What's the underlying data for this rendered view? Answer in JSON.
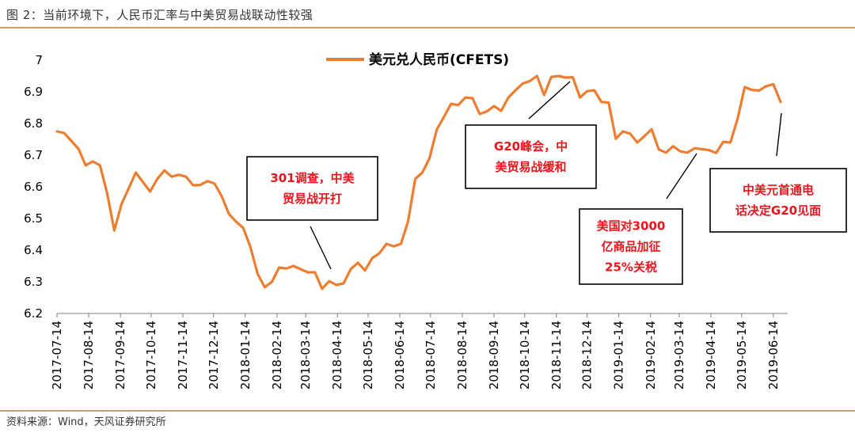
{
  "header": {
    "title": "图 2：当前环境下，人民币汇率与中美贸易战联动性较强"
  },
  "footer": {
    "source": "资料来源：Wind，天风证券研究所"
  },
  "colors": {
    "line": "#ed7d31",
    "annotation_text": "#e8151c",
    "rule": "#d79b5c"
  },
  "chart_data": {
    "type": "line",
    "title": "",
    "xlabel": "",
    "ylabel": "",
    "ylim": [
      6.2,
      7.0
    ],
    "yticks": [
      "7",
      "6.9",
      "6.8",
      "6.7",
      "6.6",
      "6.5",
      "6.4",
      "6.3",
      "6.2"
    ],
    "xticks": [
      "2017-07-14",
      "2017-08-14",
      "2017-09-14",
      "2017-10-14",
      "2017-11-14",
      "2017-12-14",
      "2018-01-14",
      "2018-02-14",
      "2018-03-14",
      "2018-04-14",
      "2018-05-14",
      "2018-06-14",
      "2018-07-14",
      "2018-08-14",
      "2018-09-14",
      "2018-10-14",
      "2018-11-14",
      "2018-12-14",
      "2019-01-14",
      "2019-02-14",
      "2019-03-14",
      "2019-04-14",
      "2019-05-14",
      "2019-06-14"
    ],
    "legend": "top-center",
    "grid": false,
    "series": [
      {
        "name": "美元兑人民币(CFETS)",
        "points": [
          [
            "2017-07-14",
            6.775
          ],
          [
            "2017-07-21",
            6.77
          ],
          [
            "2017-07-28",
            6.745
          ],
          [
            "2017-08-04",
            6.72
          ],
          [
            "2017-08-11",
            6.668
          ],
          [
            "2017-08-18",
            6.68
          ],
          [
            "2017-08-25",
            6.668
          ],
          [
            "2017-09-01",
            6.58
          ],
          [
            "2017-09-08",
            6.462
          ],
          [
            "2017-09-15",
            6.545
          ],
          [
            "2017-09-22",
            6.595
          ],
          [
            "2017-09-29",
            6.645
          ],
          [
            "2017-10-13",
            6.585
          ],
          [
            "2017-10-20",
            6.625
          ],
          [
            "2017-10-27",
            6.652
          ],
          [
            "2017-11-03",
            6.632
          ],
          [
            "2017-11-10",
            6.638
          ],
          [
            "2017-11-17",
            6.632
          ],
          [
            "2017-11-24",
            6.605
          ],
          [
            "2017-12-01",
            6.606
          ],
          [
            "2017-12-08",
            6.618
          ],
          [
            "2017-12-15",
            6.61
          ],
          [
            "2017-12-22",
            6.57
          ],
          [
            "2017-12-29",
            6.514
          ],
          [
            "2018-01-05",
            6.49
          ],
          [
            "2018-01-12",
            6.47
          ],
          [
            "2018-01-19",
            6.41
          ],
          [
            "2018-01-26",
            6.325
          ],
          [
            "2018-02-02",
            6.283
          ],
          [
            "2018-02-09",
            6.3
          ],
          [
            "2018-02-16",
            6.345
          ],
          [
            "2018-02-23",
            6.342
          ],
          [
            "2018-03-02",
            6.35
          ],
          [
            "2018-03-09",
            6.34
          ],
          [
            "2018-03-16",
            6.33
          ],
          [
            "2018-03-23",
            6.33
          ],
          [
            "2018-03-30",
            6.278
          ],
          [
            "2018-04-06",
            6.302
          ],
          [
            "2018-04-13",
            6.29
          ],
          [
            "2018-04-20",
            6.295
          ],
          [
            "2018-04-27",
            6.34
          ],
          [
            "2018-05-04",
            6.36
          ],
          [
            "2018-05-11",
            6.336
          ],
          [
            "2018-05-18",
            6.375
          ],
          [
            "2018-05-25",
            6.39
          ],
          [
            "2018-06-01",
            6.42
          ],
          [
            "2018-06-08",
            6.412
          ],
          [
            "2018-06-15",
            6.42
          ],
          [
            "2018-06-22",
            6.49
          ],
          [
            "2018-06-29",
            6.625
          ],
          [
            "2018-07-06",
            6.645
          ],
          [
            "2018-07-13",
            6.69
          ],
          [
            "2018-07-20",
            6.78
          ],
          [
            "2018-07-27",
            6.82
          ],
          [
            "2018-08-03",
            6.862
          ],
          [
            "2018-08-10",
            6.858
          ],
          [
            "2018-08-17",
            6.882
          ],
          [
            "2018-08-24",
            6.88
          ],
          [
            "2018-08-31",
            6.83
          ],
          [
            "2018-09-07",
            6.838
          ],
          [
            "2018-09-14",
            6.855
          ],
          [
            "2018-09-21",
            6.84
          ],
          [
            "2018-09-28",
            6.882
          ],
          [
            "2018-10-05",
            6.905
          ],
          [
            "2018-10-12",
            6.926
          ],
          [
            "2018-10-19",
            6.934
          ],
          [
            "2018-10-26",
            6.95
          ],
          [
            "2018-11-02",
            6.89
          ],
          [
            "2018-11-09",
            6.947
          ],
          [
            "2018-11-16",
            6.95
          ],
          [
            "2018-11-23",
            6.945
          ],
          [
            "2018-11-30",
            6.946
          ],
          [
            "2018-12-07",
            6.882
          ],
          [
            "2018-12-14",
            6.902
          ],
          [
            "2018-12-21",
            6.905
          ],
          [
            "2018-12-28",
            6.868
          ],
          [
            "2019-01-04",
            6.866
          ],
          [
            "2019-01-11",
            6.752
          ],
          [
            "2019-01-18",
            6.775
          ],
          [
            "2019-01-25",
            6.768
          ],
          [
            "2019-02-01",
            6.74
          ],
          [
            "2019-02-08",
            6.76
          ],
          [
            "2019-02-15",
            6.782
          ],
          [
            "2019-02-22",
            6.718
          ],
          [
            "2019-03-01",
            6.708
          ],
          [
            "2019-03-08",
            6.728
          ],
          [
            "2019-03-15",
            6.712
          ],
          [
            "2019-03-22",
            6.708
          ],
          [
            "2019-03-29",
            6.722
          ],
          [
            "2019-04-05",
            6.719
          ],
          [
            "2019-04-12",
            6.716
          ],
          [
            "2019-04-19",
            6.707
          ],
          [
            "2019-04-26",
            6.742
          ],
          [
            "2019-05-03",
            6.74
          ],
          [
            "2019-05-10",
            6.815
          ],
          [
            "2019-05-17",
            6.915
          ],
          [
            "2019-05-24",
            6.906
          ],
          [
            "2019-05-31",
            6.904
          ],
          [
            "2019-06-07",
            6.918
          ],
          [
            "2019-06-14",
            6.924
          ],
          [
            "2019-06-21",
            6.868
          ]
        ]
      }
    ],
    "annotations": [
      {
        "lines": [
          "301调查，中美",
          "贸易战开打"
        ]
      },
      {
        "lines": [
          "G20峰会，中",
          "美贸易战缓和"
        ]
      },
      {
        "lines": [
          "美国对3000",
          "亿商品加征",
          "25%关税"
        ]
      },
      {
        "lines": [
          "中美元首通电",
          "话决定G20见面"
        ]
      }
    ]
  }
}
